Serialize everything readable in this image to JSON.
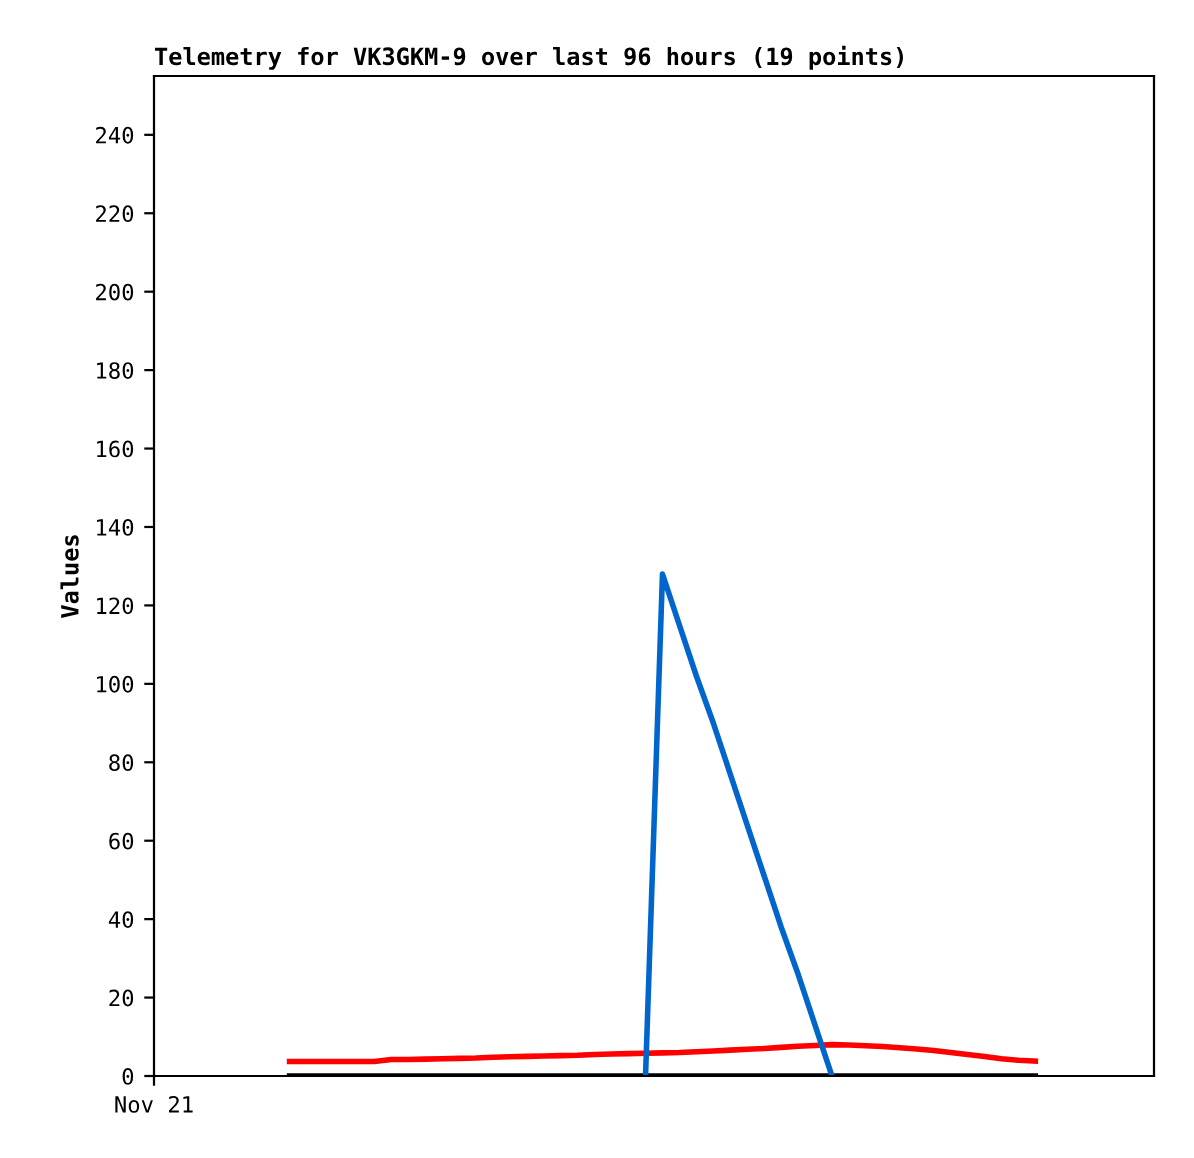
{
  "chart_data": {
    "type": "line",
    "title": "Telemetry for VK3GKM-9 over last 96 hours (19 points)",
    "ylabel": "Values",
    "categories": [
      "Nov 21",
      null,
      null,
      null,
      null,
      null,
      null,
      null,
      null,
      null,
      null,
      null,
      null,
      null,
      null,
      null,
      null,
      null,
      null,
      null,
      null,
      null,
      null,
      null,
      null,
      null,
      null,
      null,
      null,
      null,
      null,
      null,
      null,
      null,
      null,
      null,
      null,
      null,
      null,
      null,
      null,
      null,
      null,
      null,
      null,
      null,
      null,
      null,
      null,
      null,
      null,
      null,
      null,
      null,
      null,
      null,
      null,
      null,
      null,
      null
    ],
    "ylim": [
      0,
      255
    ],
    "yticks": [
      0,
      20,
      40,
      60,
      80,
      100,
      120,
      140,
      160,
      180,
      200,
      220,
      240
    ],
    "grid": false,
    "legend": false,
    "marker": "none",
    "line_style": "solid",
    "series": [
      {
        "color": "#000000",
        "values": [
          null,
          null,
          null,
          null,
          null,
          null,
          null,
          null,
          0,
          0,
          0,
          0,
          0,
          0,
          0,
          0,
          0,
          0,
          0,
          0,
          0,
          0,
          0,
          0,
          0,
          0,
          0,
          0,
          0,
          0,
          0,
          0,
          0,
          0,
          0,
          0,
          0,
          0,
          0,
          0,
          0,
          0,
          0,
          0,
          0,
          0,
          0,
          0,
          0,
          0,
          0,
          0,
          0,
          null,
          null,
          null,
          null,
          null,
          null,
          null
        ]
      },
      {
        "color": "#ff0000",
        "values": [
          null,
          null,
          null,
          null,
          null,
          null,
          null,
          null,
          3.7,
          3.7,
          3.7,
          3.7,
          3.7,
          3.7,
          4.2,
          4.2,
          4.3,
          4.4,
          4.5,
          4.6,
          4.8,
          4.9,
          5.0,
          5.1,
          5.2,
          5.3,
          5.5,
          5.6,
          5.7,
          5.8,
          5.9,
          6.0,
          6.2,
          6.4,
          6.6,
          6.8,
          7.0,
          7.3,
          7.6,
          7.8,
          8.0,
          7.9,
          7.7,
          7.5,
          7.2,
          6.9,
          6.5,
          6.0,
          5.5,
          5.0,
          4.4,
          4.0,
          3.8,
          null,
          null,
          null,
          null,
          null,
          null,
          null
        ]
      },
      {
        "color": "#0066cc",
        "values": [
          null,
          null,
          null,
          null,
          null,
          null,
          null,
          null,
          null,
          null,
          null,
          null,
          null,
          null,
          null,
          null,
          null,
          null,
          null,
          null,
          null,
          null,
          null,
          null,
          null,
          null,
          null,
          null,
          null,
          0,
          128,
          115,
          102,
          90,
          77,
          64,
          51,
          38,
          26,
          13,
          0,
          null,
          null,
          null,
          null,
          null,
          null,
          null,
          null,
          null,
          null,
          null,
          null,
          null,
          null,
          null,
          null,
          null,
          null,
          null
        ]
      }
    ]
  }
}
